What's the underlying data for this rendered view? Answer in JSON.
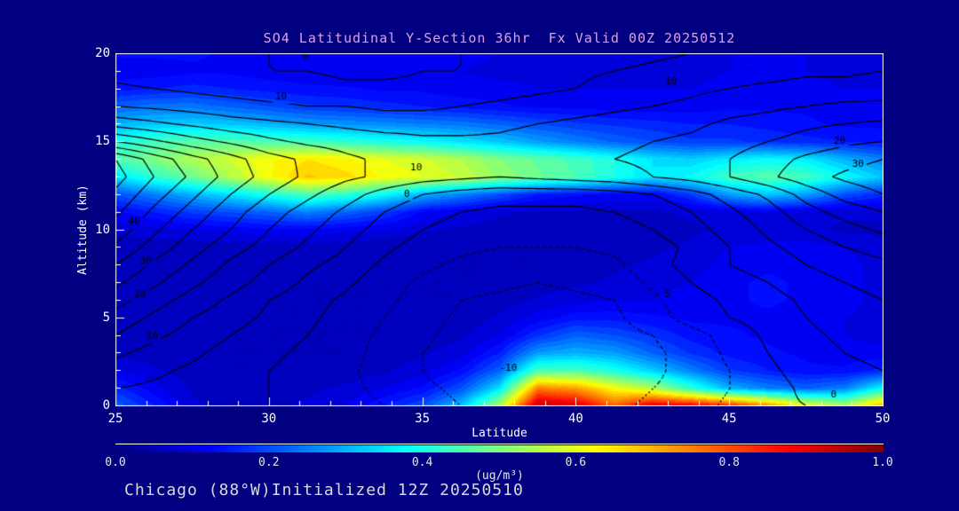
{
  "window": {
    "background": "#000080"
  },
  "header": {
    "title": "SO4 Latitudinal Y-Section 36hr  Fx Valid 00Z 20250512",
    "title_color": "#dda0dd"
  },
  "footer": {
    "text": "Chicago (88°W)Initialized 12Z 20250510",
    "color": "#d9d9d9"
  },
  "chart_data": {
    "type": "heatmap",
    "title": "SO4 Latitudinal Y-Section 36hr  Fx Valid 00Z 20250512",
    "xlabel": "Latitude",
    "ylabel": "Altitude (km)",
    "x_range": [
      25,
      50
    ],
    "y_range": [
      0,
      20
    ],
    "x_major_ticks": [
      25,
      30,
      35,
      40,
      45,
      50
    ],
    "x_minor_step": 1,
    "y_major_ticks": [
      0,
      5,
      10,
      15,
      20
    ],
    "y_minor_step": 1,
    "grid": "off",
    "colormap": "jet",
    "fill_field": {
      "name": "SO4 concentration",
      "units": "ug/m3",
      "lat_points": [
        25,
        26.25,
        27.5,
        28.75,
        30,
        31.25,
        32.5,
        33.75,
        35,
        36.25,
        37.5,
        38.75,
        40,
        41.25,
        42.5,
        43.75,
        45,
        46.25,
        47.5,
        48.75,
        50
      ],
      "alt_points": [
        0,
        1,
        2,
        3,
        4,
        5,
        6,
        7,
        8,
        9,
        10,
        11,
        12,
        13,
        14,
        15,
        16,
        17,
        18,
        19,
        20
      ],
      "values": [
        [
          0.22,
          0.15,
          0.08,
          0.07,
          0.07,
          0.08,
          0.1,
          0.15,
          0.2,
          0.32,
          0.55,
          0.95,
          0.92,
          0.78,
          0.92,
          0.9,
          0.85,
          0.75,
          0.62,
          0.55,
          0.72
        ],
        [
          0.16,
          0.11,
          0.07,
          0.06,
          0.06,
          0.07,
          0.08,
          0.1,
          0.13,
          0.2,
          0.35,
          0.75,
          0.72,
          0.62,
          0.55,
          0.42,
          0.3,
          0.25,
          0.22,
          0.25,
          0.38
        ],
        [
          0.1,
          0.08,
          0.06,
          0.05,
          0.05,
          0.05,
          0.06,
          0.07,
          0.09,
          0.13,
          0.22,
          0.45,
          0.45,
          0.4,
          0.33,
          0.25,
          0.18,
          0.15,
          0.13,
          0.13,
          0.16
        ],
        [
          0.07,
          0.06,
          0.06,
          0.05,
          0.05,
          0.05,
          0.05,
          0.06,
          0.07,
          0.09,
          0.15,
          0.28,
          0.3,
          0.28,
          0.22,
          0.17,
          0.14,
          0.13,
          0.12,
          0.11,
          0.11
        ],
        [
          0.06,
          0.06,
          0.05,
          0.05,
          0.05,
          0.05,
          0.05,
          0.05,
          0.06,
          0.07,
          0.1,
          0.17,
          0.22,
          0.2,
          0.17,
          0.14,
          0.13,
          0.12,
          0.11,
          0.1,
          0.09
        ],
        [
          0.06,
          0.06,
          0.06,
          0.05,
          0.05,
          0.05,
          0.05,
          0.05,
          0.05,
          0.06,
          0.08,
          0.11,
          0.14,
          0.14,
          0.13,
          0.12,
          0.12,
          0.12,
          0.11,
          0.1,
          0.09
        ],
        [
          0.06,
          0.06,
          0.06,
          0.06,
          0.05,
          0.05,
          0.05,
          0.05,
          0.05,
          0.05,
          0.06,
          0.08,
          0.09,
          0.1,
          0.1,
          0.11,
          0.12,
          0.13,
          0.12,
          0.11,
          0.09
        ],
        [
          0.06,
          0.06,
          0.06,
          0.06,
          0.06,
          0.05,
          0.05,
          0.05,
          0.05,
          0.05,
          0.05,
          0.06,
          0.07,
          0.08,
          0.09,
          0.1,
          0.12,
          0.13,
          0.12,
          0.11,
          0.09
        ],
        [
          0.06,
          0.06,
          0.06,
          0.06,
          0.06,
          0.06,
          0.05,
          0.05,
          0.05,
          0.05,
          0.05,
          0.05,
          0.06,
          0.07,
          0.08,
          0.09,
          0.11,
          0.12,
          0.12,
          0.11,
          0.09
        ],
        [
          0.06,
          0.06,
          0.06,
          0.06,
          0.06,
          0.06,
          0.06,
          0.05,
          0.05,
          0.05,
          0.05,
          0.05,
          0.06,
          0.06,
          0.07,
          0.08,
          0.1,
          0.11,
          0.11,
          0.1,
          0.08
        ],
        [
          0.08,
          0.09,
          0.1,
          0.11,
          0.12,
          0.12,
          0.11,
          0.1,
          0.08,
          0.07,
          0.06,
          0.06,
          0.06,
          0.06,
          0.06,
          0.07,
          0.08,
          0.08,
          0.08,
          0.07,
          0.07
        ],
        [
          0.12,
          0.15,
          0.18,
          0.2,
          0.22,
          0.25,
          0.22,
          0.18,
          0.12,
          0.1,
          0.08,
          0.07,
          0.07,
          0.07,
          0.07,
          0.08,
          0.09,
          0.1,
          0.09,
          0.08,
          0.08
        ],
        [
          0.2,
          0.25,
          0.3,
          0.35,
          0.4,
          0.45,
          0.42,
          0.38,
          0.3,
          0.25,
          0.2,
          0.15,
          0.13,
          0.12,
          0.12,
          0.18,
          0.28,
          0.32,
          0.28,
          0.2,
          0.16
        ],
        [
          0.35,
          0.42,
          0.48,
          0.55,
          0.62,
          0.68,
          0.66,
          0.62,
          0.6,
          0.57,
          0.52,
          0.48,
          0.45,
          0.4,
          0.35,
          0.38,
          0.44,
          0.46,
          0.44,
          0.38,
          0.32
        ],
        [
          0.45,
          0.5,
          0.55,
          0.58,
          0.62,
          0.65,
          0.63,
          0.6,
          0.58,
          0.55,
          0.5,
          0.47,
          0.44,
          0.4,
          0.35,
          0.33,
          0.36,
          0.38,
          0.36,
          0.3,
          0.25
        ],
        [
          0.4,
          0.44,
          0.46,
          0.46,
          0.45,
          0.44,
          0.42,
          0.4,
          0.38,
          0.35,
          0.32,
          0.28,
          0.25,
          0.22,
          0.2,
          0.18,
          0.18,
          0.17,
          0.16,
          0.15,
          0.14
        ],
        [
          0.3,
          0.32,
          0.33,
          0.32,
          0.3,
          0.28,
          0.27,
          0.26,
          0.25,
          0.24,
          0.22,
          0.2,
          0.18,
          0.17,
          0.16,
          0.15,
          0.15,
          0.14,
          0.13,
          0.12,
          0.12
        ],
        [
          0.22,
          0.24,
          0.24,
          0.22,
          0.2,
          0.18,
          0.17,
          0.16,
          0.15,
          0.14,
          0.13,
          0.12,
          0.12,
          0.11,
          0.11,
          0.11,
          0.12,
          0.12,
          0.12,
          0.11,
          0.11
        ],
        [
          0.14,
          0.15,
          0.16,
          0.15,
          0.14,
          0.13,
          0.13,
          0.12,
          0.12,
          0.11,
          0.11,
          0.1,
          0.1,
          0.1,
          0.1,
          0.1,
          0.11,
          0.11,
          0.11,
          0.1,
          0.1
        ],
        [
          0.11,
          0.11,
          0.12,
          0.12,
          0.11,
          0.11,
          0.1,
          0.1,
          0.1,
          0.1,
          0.09,
          0.09,
          0.09,
          0.09,
          0.09,
          0.09,
          0.1,
          0.1,
          0.1,
          0.09,
          0.09
        ],
        [
          0.13,
          0.13,
          0.13,
          0.12,
          0.12,
          0.12,
          0.12,
          0.11,
          0.11,
          0.11,
          0.1,
          0.1,
          0.1,
          0.1,
          0.1,
          0.1,
          0.1,
          0.1,
          0.1,
          0.1,
          0.1
        ]
      ]
    },
    "line_field": {
      "name": "overlay contour field",
      "solid_levels": [
        0,
        5,
        10,
        15,
        20,
        25,
        30,
        35,
        40,
        45
      ],
      "dotted_levels": [
        -15,
        -10,
        -5
      ],
      "values": [
        [
          3,
          3,
          2,
          1,
          0,
          -1,
          -3,
          -5,
          -8,
          -10,
          -12,
          -12,
          -12,
          -11,
          -9,
          -7,
          -4,
          -1,
          0,
          2,
          3
        ],
        [
          5,
          4,
          3,
          1,
          0,
          -2,
          -4,
          -6,
          -9,
          -11,
          -13,
          -14,
          -13,
          -12,
          -10,
          -8,
          -5,
          -2,
          1,
          3,
          4
        ],
        [
          8,
          6,
          4,
          2,
          0,
          -2,
          -4,
          -7,
          -10,
          -13,
          -15,
          -15,
          -15,
          -13,
          -11,
          -8,
          -5,
          -1,
          2,
          4,
          5
        ],
        [
          11,
          8,
          6,
          3,
          1,
          -1,
          -3,
          -7,
          -10,
          -12,
          -14,
          -15,
          -14,
          -13,
          -11,
          -8,
          -4,
          0,
          3,
          5,
          6
        ],
        [
          15,
          11,
          8,
          5,
          2,
          0,
          -3,
          -6,
          -9,
          -12,
          -14,
          -14,
          -14,
          -12,
          -10,
          -7,
          -3,
          1,
          4,
          6,
          7
        ],
        [
          18,
          14,
          10,
          7,
          4,
          1,
          -2,
          -5,
          -8,
          -11,
          -13,
          -13,
          -13,
          -11,
          -7,
          -3,
          0,
          2,
          5,
          7,
          8
        ],
        [
          22,
          17,
          13,
          9,
          5,
          2,
          -1,
          -4,
          -7,
          -10,
          -11,
          -12,
          -11,
          -10,
          -6,
          -2,
          1,
          3,
          6,
          8,
          10
        ],
        [
          26,
          21,
          16,
          12,
          8,
          4,
          1,
          -3,
          -6,
          -8,
          -9,
          -10,
          -9,
          -8,
          -4,
          0,
          3,
          5,
          8,
          10,
          12
        ],
        [
          30,
          24,
          19,
          14,
          10,
          6,
          3,
          -1,
          -4,
          -6,
          -7,
          -7,
          -7,
          -6,
          -2,
          2,
          5,
          7,
          10,
          12,
          14
        ],
        [
          34,
          28,
          22,
          17,
          13,
          9,
          5,
          1,
          -2,
          -4,
          -5,
          -5,
          -5,
          -4,
          -2,
          1,
          5,
          9,
          12,
          15,
          17
        ],
        [
          38,
          31,
          25,
          20,
          15,
          11,
          7,
          3,
          0,
          -2,
          -3,
          -3,
          -3,
          -2,
          0,
          3,
          7,
          11,
          15,
          18,
          21
        ],
        [
          41,
          34,
          28,
          22,
          17,
          13,
          9,
          5,
          2,
          0,
          -1,
          -1,
          -1,
          0,
          2,
          5,
          9,
          13,
          18,
          22,
          25
        ],
        [
          44,
          37,
          31,
          25,
          20,
          16,
          12,
          8,
          5,
          3,
          2,
          2,
          2,
          3,
          5,
          8,
          12,
          16,
          22,
          27,
          30
        ],
        [
          47,
          40,
          34,
          28,
          23,
          19,
          16,
          14,
          12,
          11,
          10,
          11,
          12,
          13,
          15,
          17,
          20,
          24,
          28,
          31,
          33
        ],
        [
          45,
          38,
          32,
          27,
          22,
          19,
          16,
          14,
          13,
          12,
          12,
          13,
          14,
          15,
          16,
          18,
          20,
          23,
          26,
          28,
          30
        ],
        [
          30,
          26,
          22,
          19,
          16,
          14,
          13,
          12,
          11,
          11,
          11,
          12,
          13,
          14,
          15,
          16,
          18,
          20,
          22,
          24,
          25
        ],
        [
          18,
          16,
          14,
          12,
          11,
          10,
          9,
          8,
          8,
          8,
          9,
          10,
          11,
          12,
          13,
          14,
          16,
          17,
          19,
          20,
          21
        ],
        [
          10,
          9,
          8,
          7,
          6,
          5,
          5,
          4,
          4,
          5,
          6,
          7,
          8,
          9,
          10,
          11,
          13,
          14,
          15,
          16,
          16
        ],
        [
          6,
          5,
          4,
          3,
          2,
          2,
          1,
          1,
          1,
          2,
          3,
          4,
          5,
          7,
          8,
          9,
          10,
          11,
          12,
          12,
          13
        ],
        [
          3,
          2,
          2,
          1,
          0,
          0,
          -1,
          -1,
          0,
          0,
          1,
          2,
          4,
          5,
          6,
          7,
          8,
          8,
          9,
          9,
          10
        ],
        [
          2,
          1,
          1,
          0,
          0,
          -1,
          -1,
          -1,
          -1,
          0,
          0,
          1,
          2,
          3,
          4,
          5,
          5,
          6,
          6,
          7,
          8
        ]
      ]
    },
    "contour_labels": [
      {
        "lat": 31.2,
        "alt": 19.8,
        "text": "0"
      },
      {
        "lat": 30.4,
        "alt": 17.5,
        "text": "10"
      },
      {
        "lat": 43.1,
        "alt": 18.4,
        "text": "10"
      },
      {
        "lat": 48.6,
        "alt": 15.0,
        "text": "20"
      },
      {
        "lat": 49.2,
        "alt": 13.7,
        "text": "30"
      },
      {
        "lat": 34.8,
        "alt": 13.5,
        "text": "10"
      },
      {
        "lat": 34.5,
        "alt": 12.0,
        "text": "0"
      },
      {
        "lat": 25.6,
        "alt": 10.4,
        "text": "40"
      },
      {
        "lat": 26.0,
        "alt": 8.2,
        "text": "30"
      },
      {
        "lat": 25.8,
        "alt": 6.3,
        "text": "20"
      },
      {
        "lat": 26.2,
        "alt": 3.9,
        "text": "10"
      },
      {
        "lat": 37.8,
        "alt": 2.1,
        "text": "-10"
      },
      {
        "lat": 43.0,
        "alt": 6.3,
        "text": "5"
      },
      {
        "lat": 48.4,
        "alt": 0.6,
        "text": "0"
      }
    ],
    "colorbar": {
      "min": 0.0,
      "max": 1.0,
      "tick_labels": [
        "0.0",
        "0.2",
        "0.4",
        "0.6",
        "0.8",
        "1.0"
      ],
      "unit": "(ug/m³)"
    }
  }
}
